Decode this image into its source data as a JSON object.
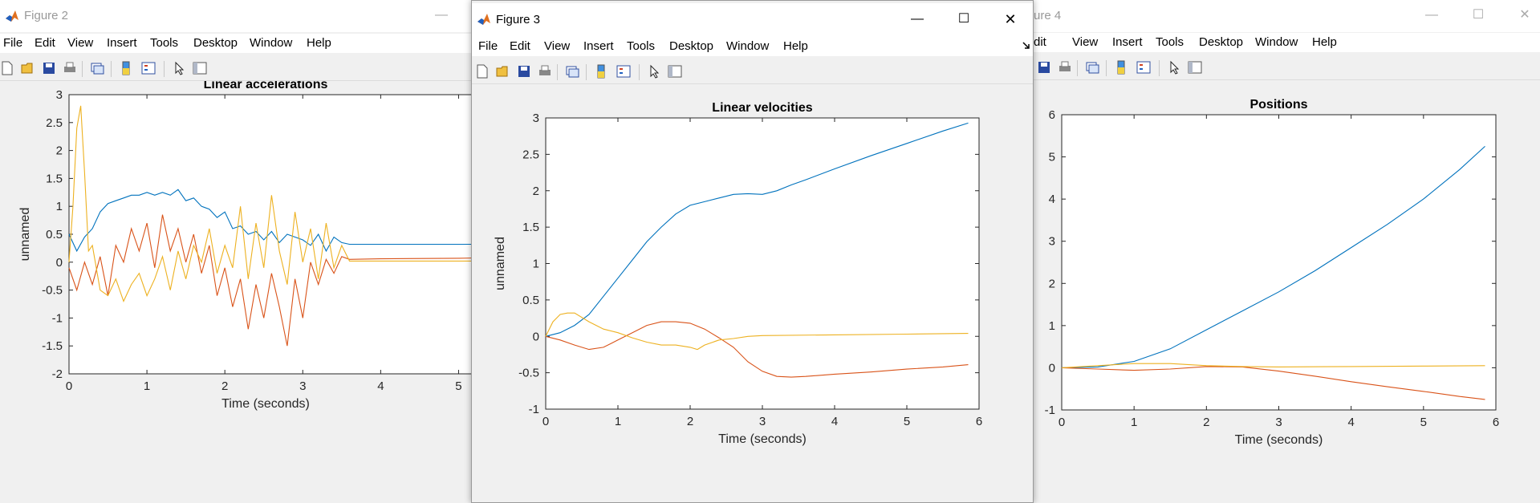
{
  "menu": [
    "File",
    "Edit",
    "View",
    "Insert",
    "Tools",
    "Desktop",
    "Window",
    "Help"
  ],
  "figure2": {
    "window_title": "Figure 2",
    "plot_title": "Linear accelerations",
    "xlabel": "Time (seconds)",
    "ylabel": "unnamed",
    "yticks": [
      "3",
      "2.5",
      "2",
      "1.5",
      "1",
      "0.5",
      "0",
      "-0.5",
      "-1",
      "-1.5",
      "-2"
    ],
    "xticks": [
      "0",
      "1",
      "2",
      "3",
      "4",
      "5"
    ]
  },
  "figure3": {
    "window_title": "Figure 3",
    "plot_title": "Linear velocities",
    "xlabel": "Time (seconds)",
    "ylabel": "unnamed",
    "yticks": [
      "3",
      "2.5",
      "2",
      "1.5",
      "1",
      "0.5",
      "0",
      "-0.5",
      "-1"
    ],
    "xticks": [
      "0",
      "1",
      "2",
      "3",
      "4",
      "5",
      "6"
    ]
  },
  "figure4": {
    "window_title": "ure 4",
    "plot_title": "Positions",
    "xlabel": "Time (seconds)",
    "yticks": [
      "6",
      "5",
      "4",
      "3",
      "2",
      "1",
      "0",
      "-1"
    ],
    "xticks": [
      "0",
      "1",
      "2",
      "3",
      "4",
      "5",
      "6"
    ]
  },
  "colors": {
    "series1": "#0072bd",
    "series2": "#d95319",
    "series3": "#edb120"
  },
  "chart_data": [
    {
      "type": "line",
      "title": "Linear accelerations",
      "xlabel": "Time (seconds)",
      "ylabel": "unnamed",
      "xlim": [
        0,
        5.5
      ],
      "ylim": [
        -2,
        3
      ],
      "series": [
        {
          "x": [
            0,
            0.1,
            0.2,
            0.3,
            0.4,
            0.5,
            0.6,
            0.7,
            0.8,
            0.9,
            1.0,
            1.1,
            1.2,
            1.3,
            1.4,
            1.5,
            1.6,
            1.7,
            1.8,
            1.9,
            2.0,
            2.1,
            2.2,
            2.3,
            2.4,
            2.5,
            2.6,
            2.7,
            2.8,
            2.9,
            3.0,
            3.1,
            3.2,
            3.3,
            3.4,
            3.5,
            3.6,
            4.0,
            5.0,
            5.5
          ],
          "y": [
            0.5,
            0.2,
            0.45,
            0.6,
            0.9,
            1.05,
            1.1,
            1.15,
            1.2,
            1.2,
            1.25,
            1.2,
            1.25,
            1.2,
            1.3,
            1.1,
            1.15,
            1.0,
            0.95,
            0.8,
            0.9,
            0.6,
            0.65,
            0.5,
            0.55,
            0.4,
            0.55,
            0.35,
            0.5,
            0.45,
            0.4,
            0.3,
            0.5,
            0.2,
            0.45,
            0.35,
            0.32,
            0.32,
            0.32,
            0.32
          ]
        },
        {
          "x": [
            0,
            0.1,
            0.2,
            0.3,
            0.4,
            0.5,
            0.6,
            0.7,
            0.8,
            0.9,
            1.0,
            1.1,
            1.2,
            1.3,
            1.4,
            1.5,
            1.6,
            1.7,
            1.8,
            1.9,
            2.0,
            2.1,
            2.2,
            2.3,
            2.4,
            2.5,
            2.6,
            2.7,
            2.8,
            2.9,
            3.0,
            3.1,
            3.2,
            3.3,
            3.4,
            3.5,
            3.6,
            4.0,
            5.0,
            5.5
          ],
          "y": [
            -0.1,
            -0.5,
            0.0,
            -0.4,
            0.1,
            -0.6,
            0.3,
            0.0,
            0.6,
            0.2,
            0.7,
            -0.1,
            0.85,
            0.2,
            0.6,
            0.0,
            0.5,
            -0.2,
            0.3,
            -0.6,
            -0.1,
            -0.8,
            -0.3,
            -1.2,
            -0.4,
            -1.0,
            -0.2,
            -0.8,
            -1.5,
            -0.3,
            -1.0,
            0.0,
            -0.4,
            0.05,
            -0.2,
            0.1,
            0.05,
            0.06,
            0.07,
            0.08
          ]
        },
        {
          "x": [
            0,
            0.05,
            0.1,
            0.15,
            0.2,
            0.25,
            0.3,
            0.4,
            0.5,
            0.6,
            0.7,
            0.8,
            0.9,
            1.0,
            1.1,
            1.2,
            1.3,
            1.4,
            1.5,
            1.6,
            1.7,
            1.8,
            1.9,
            2.0,
            2.1,
            2.2,
            2.3,
            2.4,
            2.5,
            2.6,
            2.7,
            2.8,
            2.9,
            3.0,
            3.1,
            3.2,
            3.3,
            3.4,
            3.5,
            3.6,
            4.0,
            5.0,
            5.5
          ],
          "y": [
            0.0,
            1.0,
            2.4,
            2.8,
            1.6,
            0.2,
            0.3,
            -0.5,
            -0.6,
            -0.3,
            -0.7,
            -0.4,
            -0.2,
            -0.6,
            -0.3,
            0.1,
            -0.5,
            0.2,
            -0.3,
            0.3,
            0.0,
            0.6,
            -0.2,
            0.3,
            -0.1,
            1.0,
            -0.3,
            0.7,
            -0.1,
            1.2,
            0.2,
            -0.4,
            0.9,
            0.0,
            0.6,
            -0.3,
            0.7,
            -0.1,
            0.3,
            0.02,
            0.02,
            0.02,
            0.02
          ]
        }
      ]
    },
    {
      "type": "line",
      "title": "Linear velocities",
      "xlabel": "Time (seconds)",
      "ylabel": "unnamed",
      "xlim": [
        0,
        6
      ],
      "ylim": [
        -1,
        3
      ],
      "series": [
        {
          "x": [
            0,
            0.2,
            0.4,
            0.6,
            0.8,
            1.0,
            1.2,
            1.4,
            1.6,
            1.8,
            2.0,
            2.2,
            2.4,
            2.6,
            2.8,
            3.0,
            3.2,
            3.4,
            3.6,
            4.0,
            4.5,
            5.0,
            5.5,
            5.85
          ],
          "y": [
            0,
            0.05,
            0.15,
            0.3,
            0.55,
            0.8,
            1.05,
            1.3,
            1.5,
            1.68,
            1.8,
            1.85,
            1.9,
            1.95,
            1.96,
            1.95,
            2.0,
            2.08,
            2.15,
            2.3,
            2.48,
            2.65,
            2.82,
            2.93
          ]
        },
        {
          "x": [
            0,
            0.2,
            0.4,
            0.6,
            0.8,
            1.0,
            1.2,
            1.4,
            1.6,
            1.8,
            2.0,
            2.2,
            2.4,
            2.6,
            2.8,
            3.0,
            3.2,
            3.4,
            3.6,
            4.0,
            4.5,
            5.0,
            5.5,
            5.85
          ],
          "y": [
            0,
            -0.05,
            -0.12,
            -0.18,
            -0.15,
            -0.05,
            0.05,
            0.15,
            0.2,
            0.2,
            0.18,
            0.1,
            -0.02,
            -0.15,
            -0.35,
            -0.48,
            -0.55,
            -0.56,
            -0.55,
            -0.52,
            -0.49,
            -0.45,
            -0.42,
            -0.39
          ]
        },
        {
          "x": [
            0,
            0.1,
            0.2,
            0.3,
            0.4,
            0.6,
            0.8,
            1.0,
            1.2,
            1.4,
            1.6,
            1.8,
            2.0,
            2.1,
            2.2,
            2.4,
            2.6,
            2.8,
            3.0,
            4.0,
            5.0,
            5.85
          ],
          "y": [
            0,
            0.2,
            0.3,
            0.32,
            0.32,
            0.2,
            0.1,
            0.05,
            -0.02,
            -0.08,
            -0.12,
            -0.12,
            -0.15,
            -0.18,
            -0.12,
            -0.05,
            -0.03,
            0.0,
            0.01,
            0.02,
            0.03,
            0.04
          ]
        }
      ]
    },
    {
      "type": "line",
      "title": "Positions",
      "xlabel": "Time (seconds)",
      "xlim": [
        0,
        6
      ],
      "ylim": [
        -1,
        6
      ],
      "series": [
        {
          "x": [
            0,
            0.5,
            1.0,
            1.5,
            2.0,
            2.5,
            3.0,
            3.5,
            4.0,
            4.5,
            5.0,
            5.5,
            5.85
          ],
          "y": [
            0,
            0.02,
            0.15,
            0.45,
            0.9,
            1.35,
            1.8,
            2.3,
            2.85,
            3.4,
            4.0,
            4.7,
            5.25
          ]
        },
        {
          "x": [
            0,
            0.5,
            1.0,
            1.5,
            2.0,
            2.5,
            3.0,
            3.5,
            4.0,
            4.5,
            5.0,
            5.5,
            5.85
          ],
          "y": [
            0,
            -0.03,
            -0.06,
            -0.03,
            0.03,
            0.02,
            -0.08,
            -0.2,
            -0.33,
            -0.45,
            -0.56,
            -0.68,
            -0.75
          ]
        },
        {
          "x": [
            0,
            0.5,
            1.0,
            1.5,
            2.0,
            2.5,
            3.0,
            4.0,
            5.0,
            5.85
          ],
          "y": [
            0,
            0.05,
            0.1,
            0.1,
            0.05,
            0.03,
            0.02,
            0.03,
            0.04,
            0.05
          ]
        }
      ]
    }
  ]
}
